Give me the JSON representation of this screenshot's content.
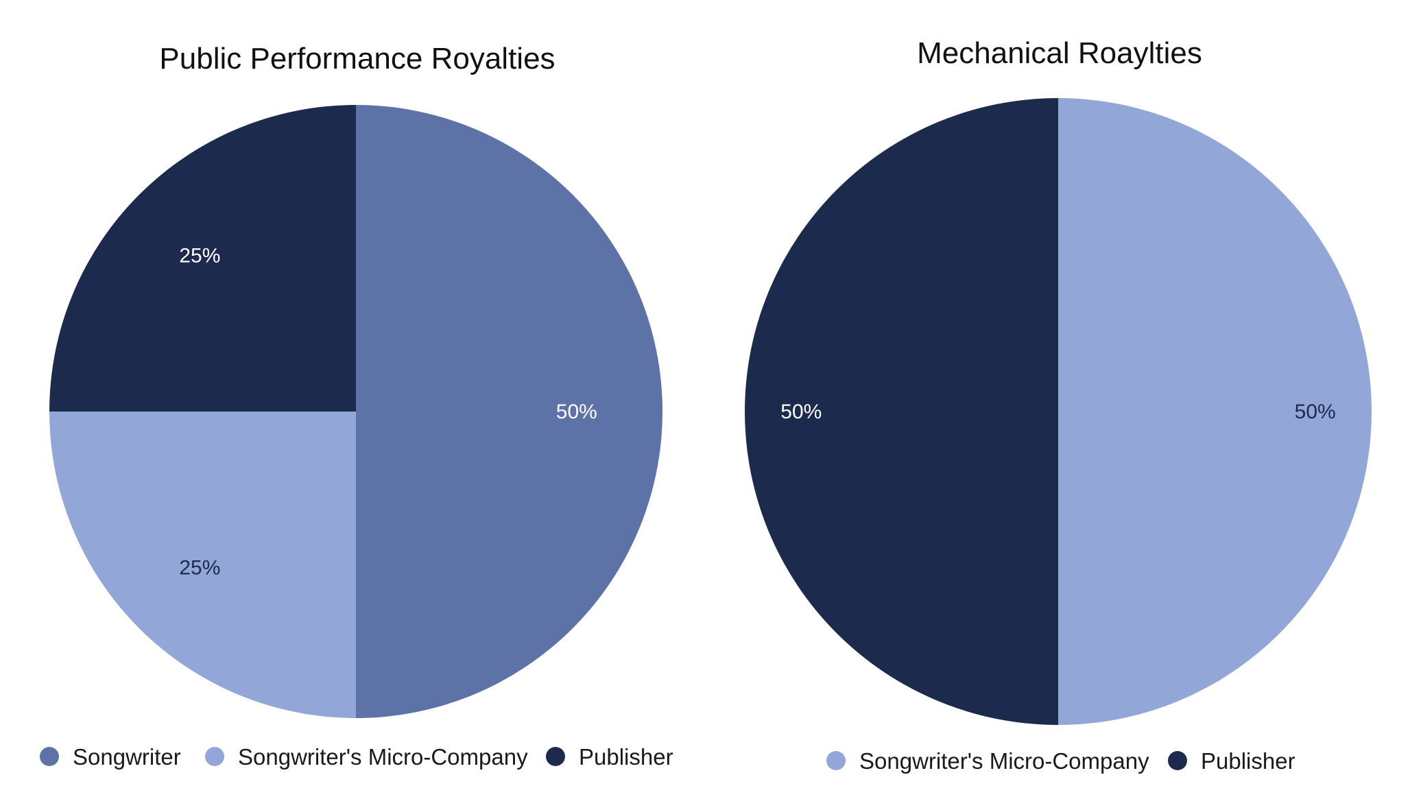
{
  "colors": {
    "songwriter": "#5d72a6",
    "micro_company": "#92a6d7",
    "publisher": "#1c2a4d",
    "label_light": "#ffffff",
    "label_dark": "#1c2a4d"
  },
  "chart_data": [
    {
      "type": "pie",
      "title": "Public Performance Royalties",
      "start_angle_deg": 0,
      "direction": "clockwise",
      "legend_position": "bottom",
      "slices": [
        {
          "name": "Songwriter",
          "value": 50,
          "label": "50%",
          "color": "#5d72a6",
          "label_color": "#ffffff"
        },
        {
          "name": "Songwriter's Micro-Company",
          "value": 25,
          "label": "25%",
          "color": "#92a6d7",
          "label_color": "#1c2a4d"
        },
        {
          "name": "Publisher",
          "value": 25,
          "label": "25%",
          "color": "#1c2a4d",
          "label_color": "#ffffff"
        }
      ],
      "legend": [
        "Songwriter",
        "Songwriter's Micro-Company",
        "Publisher"
      ]
    },
    {
      "type": "pie",
      "title": "Mechanical Roaylties",
      "start_angle_deg": 0,
      "direction": "clockwise",
      "legend_position": "bottom",
      "slices": [
        {
          "name": "Songwriter's Micro-Company",
          "value": 50,
          "label": "50%",
          "color": "#92a6d7",
          "label_color": "#1c2a4d"
        },
        {
          "name": "Publisher",
          "value": 50,
          "label": "50%",
          "color": "#1c2a4d",
          "label_color": "#ffffff"
        }
      ],
      "legend": [
        "Songwriter's Micro-Company",
        "Publisher"
      ]
    }
  ]
}
